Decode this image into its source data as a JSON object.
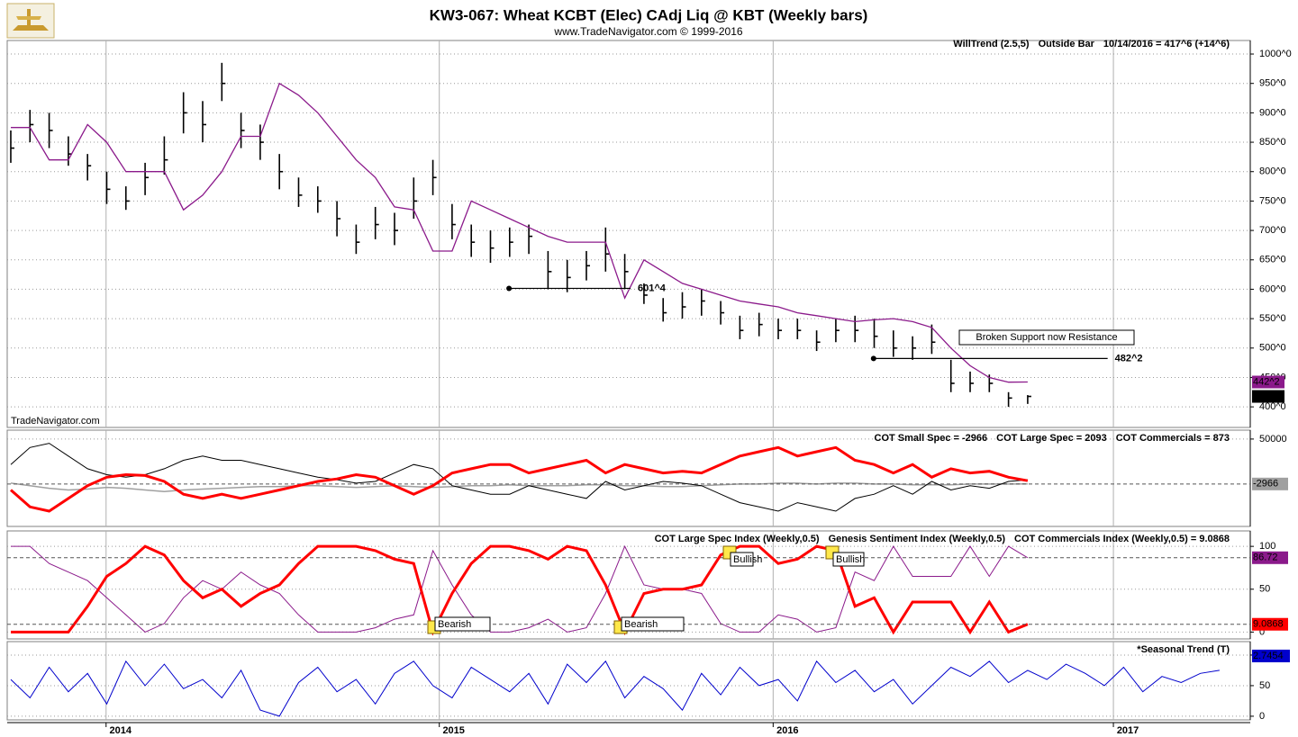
{
  "chart_data": [
    {
      "type": "ohlc",
      "title": "KW3-067:  Wheat KCBT (Elec) CAdj Liq @ KBT  (Weekly bars)",
      "subtitle": "www.TradeNavigator.com © 1999-2016",
      "watermark": "TradeNavigator.com",
      "status": "10/14/2016 = 417^6 (+14^6)",
      "outside_bar_label": "Outside Bar",
      "outside_bar_color": "#0000ff",
      "color": "#000000",
      "x": [
        0,
        3,
        6,
        9,
        12,
        15,
        18,
        21,
        24,
        27,
        30,
        33,
        36,
        39,
        42,
        45,
        48,
        51,
        54,
        57,
        60,
        63,
        66,
        69,
        72,
        75,
        78,
        81,
        84,
        87,
        90,
        93,
        96,
        99,
        102,
        105,
        108,
        111,
        114,
        117,
        120,
        123,
        126,
        129,
        132,
        135,
        138,
        141,
        144,
        147,
        150,
        153,
        156,
        159
      ],
      "high": [
        870,
        905,
        900,
        860,
        830,
        800,
        775,
        815,
        860,
        935,
        920,
        985,
        900,
        880,
        830,
        790,
        775,
        750,
        710,
        740,
        730,
        790,
        820,
        745,
        710,
        700,
        705,
        710,
        665,
        650,
        665,
        705,
        660,
        610,
        585,
        595,
        600,
        580,
        555,
        560,
        550,
        550,
        530,
        550,
        555,
        550,
        530,
        520,
        540,
        480,
        460,
        455,
        425,
        420
      ],
      "low": [
        815,
        850,
        840,
        810,
        785,
        745,
        735,
        760,
        795,
        865,
        850,
        920,
        840,
        820,
        770,
        740,
        730,
        690,
        660,
        685,
        675,
        720,
        760,
        685,
        655,
        645,
        655,
        660,
        600,
        595,
        615,
        630,
        600,
        575,
        545,
        550,
        555,
        540,
        515,
        520,
        515,
        515,
        495,
        510,
        510,
        500,
        485,
        480,
        490,
        425,
        425,
        425,
        400,
        405
      ],
      "close": [
        840,
        880,
        870,
        830,
        810,
        770,
        750,
        790,
        820,
        900,
        880,
        950,
        870,
        850,
        800,
        760,
        750,
        720,
        680,
        710,
        700,
        750,
        790,
        710,
        680,
        670,
        680,
        690,
        630,
        620,
        640,
        660,
        630,
        590,
        560,
        570,
        580,
        560,
        530,
        540,
        530,
        530,
        510,
        530,
        530,
        520,
        500,
        500,
        510,
        440,
        440,
        440,
        415,
        417.75
      ],
      "last_value_label": "417^6",
      "series": [
        {
          "name": "WillTrend (2.5,5)",
          "color": "#8b1a8b",
          "last_value_label": "442^2",
          "values": [
            875,
            875,
            820,
            820,
            880,
            850,
            800,
            800,
            800,
            735,
            760,
            800,
            860,
            860,
            950,
            930,
            900,
            860,
            820,
            790,
            740,
            735,
            665,
            665,
            750,
            735,
            720,
            705,
            690,
            680,
            680,
            680,
            585,
            650,
            630,
            610,
            600,
            590,
            580,
            575,
            570,
            560,
            555,
            550,
            545,
            548,
            550,
            545,
            535,
            500,
            470,
            450,
            442,
            442.25
          ]
        }
      ],
      "levels": [
        {
          "value": 601.5,
          "label": "601^4",
          "x": [
            77.9,
            96.9
          ]
        },
        {
          "value": 482.25,
          "label": "482^2",
          "x": [
            134.9,
            171.5
          ]
        }
      ],
      "annotation": "Broken Support now Resistance",
      "ylim": [
        365,
        1023
      ],
      "yticks": [
        {
          "value": 400,
          "label": "400^0"
        },
        {
          "value": 450,
          "label": "450^0"
        },
        {
          "value": 500,
          "label": "500^0"
        },
        {
          "value": 550,
          "label": "550^0"
        },
        {
          "value": 600,
          "label": "600^0"
        },
        {
          "value": 650,
          "label": "650^0"
        },
        {
          "value": 700,
          "label": "700^0"
        },
        {
          "value": 750,
          "label": "750^0"
        },
        {
          "value": 800,
          "label": "800^0"
        },
        {
          "value": 850,
          "label": "850^0"
        },
        {
          "value": 900,
          "label": "900^0"
        },
        {
          "value": 950,
          "label": "950^0"
        },
        {
          "value": 1000,
          "label": "1000^0"
        }
      ],
      "grid": true
    },
    {
      "type": "line",
      "headers": [
        {
          "text": "COT Small Spec = -2966",
          "color": "#909090"
        },
        {
          "text": "COT Large Spec = 2093",
          "color": "#000000"
        },
        {
          "text": "COT Commercials = 873",
          "color": "#ff0000"
        }
      ],
      "x": [
        0,
        3,
        6,
        9,
        12,
        15,
        18,
        21,
        24,
        27,
        30,
        33,
        36,
        39,
        42,
        45,
        48,
        51,
        54,
        57,
        60,
        63,
        66,
        69,
        72,
        75,
        78,
        81,
        84,
        87,
        90,
        93,
        96,
        99,
        102,
        105,
        108,
        111,
        114,
        117,
        120,
        123,
        126,
        129,
        132,
        135,
        138,
        141,
        144,
        147,
        150,
        153,
        156,
        159
      ],
      "series": [
        {
          "name": "COT Small Spec",
          "color": "#a0a0a0",
          "width": 1.5,
          "boxed": true,
          "values": [
            -2000,
            -5000,
            -8000,
            -10000,
            -9000,
            -7000,
            -8000,
            -10000,
            -12000,
            -10000,
            -9000,
            -8000,
            -7000,
            -6000,
            -6000,
            -5000,
            -5000,
            -6000,
            -7000,
            -6000,
            -5000,
            -6000,
            -7000,
            -6000,
            -5000,
            -5000,
            -4000,
            -5000,
            -5000,
            -5000,
            -4000,
            -4000,
            -5000,
            -5000,
            -6000,
            -6000,
            -5000,
            -4000,
            -3000,
            -3000,
            -2000,
            -2000,
            -3000,
            -2000,
            -2000,
            -3000,
            -3000,
            -4000,
            -4000,
            -4000,
            -3000,
            -3000,
            -3000,
            -2966
          ]
        },
        {
          "name": "COT Large Spec",
          "color": "#000000",
          "width": 1,
          "values": [
            20000,
            40000,
            45000,
            30000,
            15000,
            8000,
            5000,
            8000,
            15000,
            25000,
            30000,
            25000,
            25000,
            20000,
            15000,
            10000,
            5000,
            2000,
            -2000,
            0,
            10000,
            20000,
            15000,
            -5000,
            -10000,
            -15000,
            -15000,
            -5000,
            -10000,
            -15000,
            -20000,
            0,
            -10000,
            -5000,
            0,
            -2000,
            -5000,
            -15000,
            -25000,
            -30000,
            -35000,
            -25000,
            -30000,
            -35000,
            -20000,
            -15000,
            -5000,
            -15000,
            0,
            -10000,
            -5000,
            -8000,
            0,
            2093
          ]
        },
        {
          "name": "COT Commercials",
          "color": "#ff0000",
          "width": 3,
          "values": [
            -10000,
            -30000,
            -35000,
            -20000,
            -5000,
            5000,
            8000,
            7000,
            0,
            -15000,
            -20000,
            -15000,
            -20000,
            -15000,
            -10000,
            -5000,
            0,
            3000,
            8000,
            5000,
            -5000,
            -15000,
            -5000,
            10000,
            15000,
            20000,
            20000,
            10000,
            15000,
            20000,
            25000,
            10000,
            20000,
            15000,
            10000,
            12000,
            10000,
            20000,
            30000,
            35000,
            40000,
            30000,
            35000,
            40000,
            25000,
            20000,
            10000,
            20000,
            5000,
            15000,
            10000,
            12000,
            5000,
            873
          ]
        }
      ],
      "ylim": [
        -53000,
        60500
      ],
      "yticks": [
        50000
      ],
      "grid": true
    },
    {
      "type": "line",
      "headers": [
        {
          "text": "COT Large Spec Index (Weekly,0.5)",
          "color": "#8b1a8b"
        },
        {
          "text": "Genesis Sentiment Index (Weekly,0.5)",
          "color": "#0000cc"
        },
        {
          "text": "COT Commercials Index (Weekly,0.5) = 9.0868",
          "color": "#ff0000"
        }
      ],
      "annotations": [
        "Bearish",
        "Bearish",
        "Bullish",
        "Bullish"
      ],
      "x": [
        0,
        3,
        6,
        9,
        12,
        15,
        18,
        21,
        24,
        27,
        30,
        33,
        36,
        39,
        42,
        45,
        48,
        51,
        54,
        57,
        60,
        63,
        66,
        69,
        72,
        75,
        78,
        81,
        84,
        87,
        90,
        93,
        96,
        99,
        102,
        105,
        108,
        111,
        114,
        117,
        120,
        123,
        126,
        129,
        132,
        135,
        138,
        141,
        144,
        147,
        150,
        153,
        156,
        159
      ],
      "series": [
        {
          "name": "COT Large Spec Index",
          "color": "#8b1a8b",
          "width": 1,
          "boxed": true,
          "values": [
            100,
            100,
            80,
            70,
            60,
            40,
            20,
            0,
            10,
            40,
            60,
            50,
            70,
            55,
            45,
            20,
            0,
            0,
            0,
            5,
            15,
            20,
            95,
            55,
            20,
            0,
            0,
            5,
            15,
            0,
            5,
            45,
            100,
            55,
            50,
            50,
            45,
            10,
            0,
            0,
            20,
            15,
            0,
            5,
            70,
            60,
            100,
            65,
            65,
            65,
            100,
            65,
            100,
            86.72
          ]
        },
        {
          "name": "COT Commercials Index",
          "color": "#ff0000",
          "width": 3,
          "boxed": true,
          "values": [
            0,
            0,
            0,
            0,
            30,
            65,
            80,
            100,
            90,
            60,
            40,
            50,
            30,
            45,
            55,
            80,
            100,
            100,
            100,
            95,
            85,
            80,
            0,
            45,
            80,
            100,
            100,
            95,
            85,
            100,
            95,
            55,
            0,
            45,
            50,
            50,
            55,
            90,
            100,
            100,
            80,
            85,
            100,
            95,
            30,
            40,
            0,
            35,
            35,
            35,
            0,
            35,
            0,
            9.0868
          ]
        }
      ],
      "ylim": [
        -8,
        118
      ],
      "yticks": [
        0,
        50,
        100
      ],
      "grid": true
    },
    {
      "type": "line",
      "headers": [
        {
          "text": "*Seasonal Trend (T)",
          "color": "#0000cc"
        }
      ],
      "value_box": "2.7454",
      "x": [
        0,
        3,
        6,
        9,
        12,
        15,
        18,
        21,
        24,
        27,
        30,
        33,
        36,
        39,
        42,
        45,
        48,
        51,
        54,
        57,
        60,
        63,
        66,
        69,
        72,
        75,
        78,
        81,
        84,
        87,
        90,
        93,
        96,
        99,
        102,
        105,
        108,
        111,
        114,
        117,
        120,
        123,
        126,
        129,
        132,
        135,
        138,
        141,
        144,
        147,
        150,
        153,
        156,
        159,
        162,
        165,
        168,
        171,
        174,
        177,
        180,
        183,
        186,
        189
      ],
      "series": [
        {
          "name": "Seasonal Trend",
          "color": "#0000cc",
          "width": 1,
          "values": [
            60,
            30,
            80,
            40,
            70,
            20,
            90,
            50,
            85,
            45,
            60,
            30,
            75,
            10,
            0,
            55,
            80,
            40,
            60,
            20,
            70,
            90,
            50,
            30,
            80,
            60,
            40,
            70,
            20,
            85,
            55,
            90,
            30,
            65,
            45,
            10,
            70,
            35,
            80,
            50,
            60,
            25,
            90,
            55,
            75,
            40,
            60,
            20,
            50,
            80,
            65,
            90,
            55,
            75,
            60,
            85,
            70,
            50,
            80,
            40,
            65,
            55,
            70,
            75
          ]
        }
      ],
      "ylim": [
        -6,
        122
      ],
      "yticks": [
        0,
        50,
        100
      ],
      "xlim": [
        -0.56,
        193.8
      ],
      "xticks": [
        {
          "value": 14.9,
          "label": "2014"
        },
        {
          "value": 67,
          "label": "2015"
        },
        {
          "value": 119.2,
          "label": "2016"
        },
        {
          "value": 172.4,
          "label": "2017"
        }
      ],
      "grid": true
    }
  ]
}
